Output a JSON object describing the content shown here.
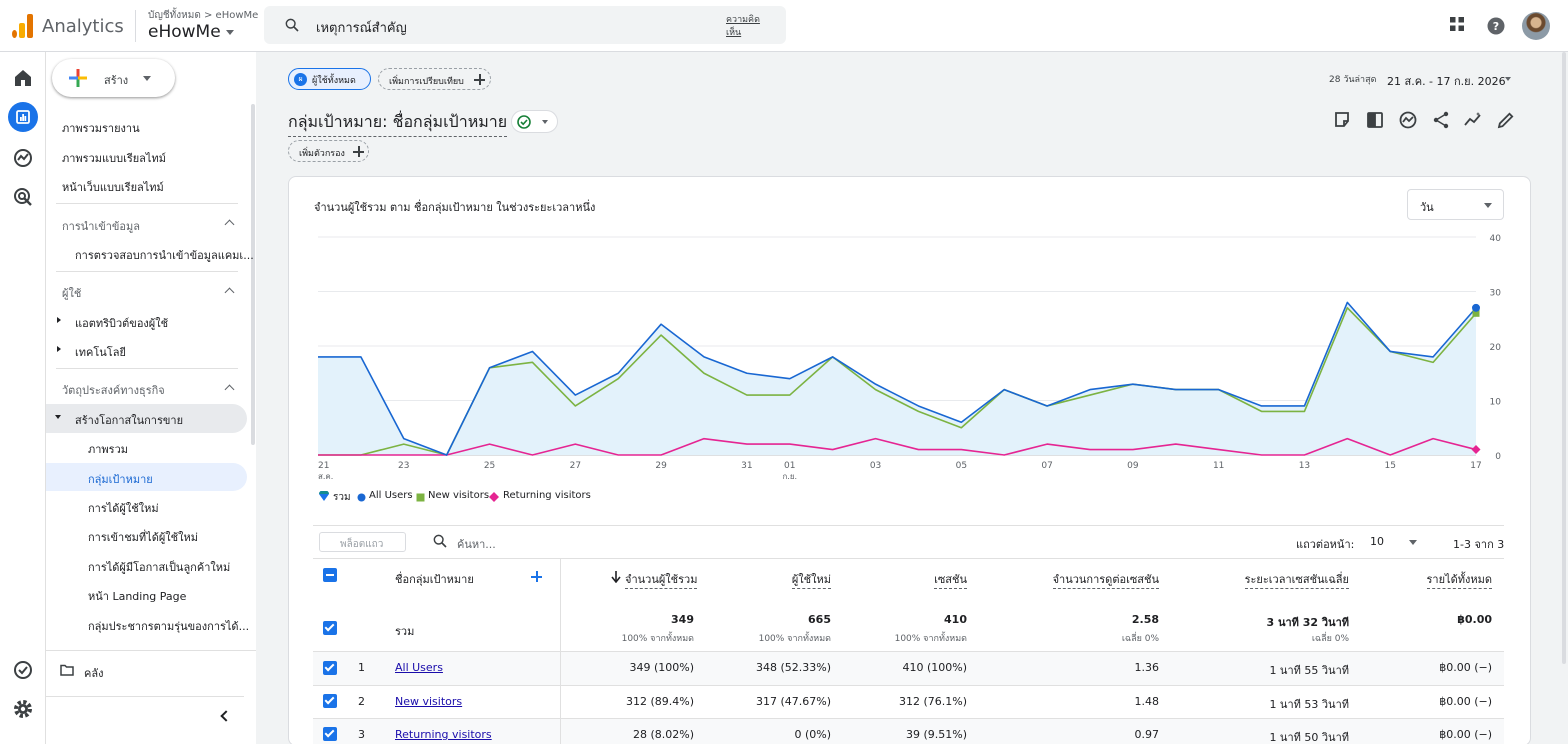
{
  "app": {
    "name": "Analytics",
    "account_crumb": "บัญชีทั้งหมด > eHowMe",
    "account_name": "eHowMe",
    "search_value": "เหตุการณ์สำคัญ",
    "feedback_label": "ความคิดเห็น",
    "icons": [
      "apps-grid-icon",
      "help-icon",
      "avatar"
    ]
  },
  "rail": {
    "items": [
      "home-icon",
      "reports-icon",
      "explore-icon",
      "advertising-icon",
      "admin-check-icon",
      "settings-icon"
    ]
  },
  "sidebar": {
    "create_label": "สร้าง",
    "items_top": [
      "ภาพรวมรายงาน",
      "ภาพรวมแบบเรียลไทม์",
      "หน้าเว็บแบบเรียลไทม์"
    ],
    "section_data_import": "การนำเข้าข้อมูล",
    "data_import_item": "การตรวจสอบการนำเข้าข้อมูลแคมเ...",
    "section_user": "ผู้ใช้",
    "user_items": [
      "แอตทริบิวต์ของผู้ใช้",
      "เทคโนโลยี"
    ],
    "section_business": "วัตถุประสงค์ทางธุรกิจ",
    "business_group": "สร้างโอกาสในการขาย",
    "business_items": [
      "ภาพรวม",
      "กลุ่มเป้าหมาย",
      "การได้ผู้ใช้ใหม่",
      "การเข้าชมที่ได้ผู้ใช้ใหม่",
      "การได้ผู้มีโอกาสเป็นลูกค้าใหม่",
      "หน้า Landing Page",
      "กลุ่มประชากรตามรุ่นของการได้..."
    ],
    "library_label": "คลัง"
  },
  "toolbar": {
    "segment_badge": "ผ",
    "segment_label": "ผู้ใช้ทั้งหมด",
    "compare_label": "เพิ่มการเปรียบเทียบ",
    "date_range_label": "28 วันล่าสุด",
    "date_range": "21 ส.ค. - 17 ก.ย. 2026",
    "title": "กลุ่มเป้าหมาย: ชื่อกลุ่มเป้าหมาย",
    "filter_label": "เพิ่มตัวกรอง",
    "icons": [
      "customize-report-icon",
      "compare-icon",
      "insights-icon",
      "share-icon",
      "trend-icon",
      "edit-icon"
    ]
  },
  "chart_panel": {
    "title": "จำนวนผู้ใช้รวม ตาม ชื่อกลุ่มเป้าหมาย ในช่วงระยะเวลาหนึ่ง",
    "period": "วัน",
    "legend": [
      "รวม",
      "All Users",
      "New visitors",
      "Returning visitors"
    ]
  },
  "chart_data": {
    "type": "line",
    "x": [
      "21 ส.ค.",
      "22",
      "23",
      "24",
      "25",
      "26",
      "27",
      "28",
      "29",
      "30",
      "31",
      "01 ก.ย.",
      "02",
      "03",
      "04",
      "05",
      "06",
      "07",
      "08",
      "09",
      "10",
      "11",
      "12",
      "13",
      "14",
      "15",
      "16",
      "17"
    ],
    "x_tick_labels": [
      "21",
      "23",
      "25",
      "27",
      "29",
      "31",
      "01",
      "03",
      "05",
      "07",
      "09",
      "11",
      "13",
      "15",
      "17"
    ],
    "x_tick_sublabels": {
      "21": "ส.ค.",
      "01": "ก.ย."
    },
    "ylim": [
      0,
      40
    ],
    "y_ticks": [
      0,
      10,
      20,
      30,
      40
    ],
    "grid": true,
    "legend_position": "bottom-left",
    "series": [
      {
        "name": "All Users",
        "color": "#1967d2",
        "values": [
          18,
          18,
          3,
          0,
          16,
          19,
          11,
          15,
          24,
          18,
          15,
          14,
          18,
          13,
          9,
          6,
          12,
          9,
          12,
          13,
          12,
          12,
          9,
          9,
          28,
          19,
          18,
          27
        ]
      },
      {
        "name": "New visitors",
        "color": "#7cb342",
        "values": [
          0,
          0,
          2,
          0,
          16,
          17,
          9,
          14,
          22,
          15,
          11,
          11,
          18,
          12,
          8,
          5,
          12,
          9,
          11,
          13,
          12,
          12,
          8,
          8,
          27,
          19,
          17,
          26
        ]
      },
      {
        "name": "Returning visitors",
        "color": "#e52592",
        "values": [
          0,
          0,
          0,
          0,
          2,
          0,
          2,
          0,
          0,
          3,
          2,
          2,
          1,
          3,
          1,
          1,
          0,
          2,
          1,
          1,
          2,
          1,
          0,
          0,
          3,
          0,
          3,
          1
        ]
      }
    ],
    "area_series": "All Users",
    "area_color": "#e3f2fb"
  },
  "table": {
    "rows_input_placeholder": "พล็อตแถว",
    "search_placeholder": "ค้นหา...",
    "per_page_label": "แถวต่อหน้า:",
    "per_page_value": "10",
    "pager": "1-3 จาก 3",
    "headers": {
      "segment": "ชื่อกลุ่มเป้าหมาย",
      "total_users": "จำนวนผู้ใช้รวม",
      "new_users": "ผู้ใช้ใหม่",
      "sessions": "เซสชัน",
      "views_per_session": "จำนวนการดูต่อเซสชัน",
      "avg_session": "ระยะเวลาเซสชันเฉลี่ย",
      "revenue": "รายได้ทั้งหมด"
    },
    "total": {
      "label": "รวม",
      "total_users": "349",
      "total_users_sub": "100% จากทั้งหมด",
      "new_users": "665",
      "new_users_sub": "100% จากทั้งหมด",
      "sessions": "410",
      "sessions_sub": "100% จากทั้งหมด",
      "views_per_session": "2.58",
      "views_per_session_sub": "เฉลี่ย 0%",
      "avg_session": "3 นาที 32 วินาที",
      "avg_session_sub": "เฉลี่ย 0%",
      "revenue": "฿0.00"
    },
    "rows": [
      {
        "index": "1",
        "name": "All Users",
        "total_users": "349 (100%)",
        "new_users": "348 (52.33%)",
        "sessions": "410 (100%)",
        "views_per_session": "1.36",
        "avg_session": "1 นาที 55 วินาที",
        "revenue": "฿0.00 (−)"
      },
      {
        "index": "2",
        "name": "New visitors",
        "total_users": "312 (89.4%)",
        "new_users": "317 (47.67%)",
        "sessions": "312 (76.1%)",
        "views_per_session": "1.48",
        "avg_session": "1 นาที 53 วินาที",
        "revenue": "฿0.00 (−)"
      },
      {
        "index": "3",
        "name": "Returning visitors",
        "total_users": "28 (8.02%)",
        "new_users": "0 (0%)",
        "sessions": "39 (9.51%)",
        "views_per_session": "0.97",
        "avg_session": "1 นาที 50 วินาที",
        "revenue": "฿0.00 (−)"
      }
    ]
  }
}
